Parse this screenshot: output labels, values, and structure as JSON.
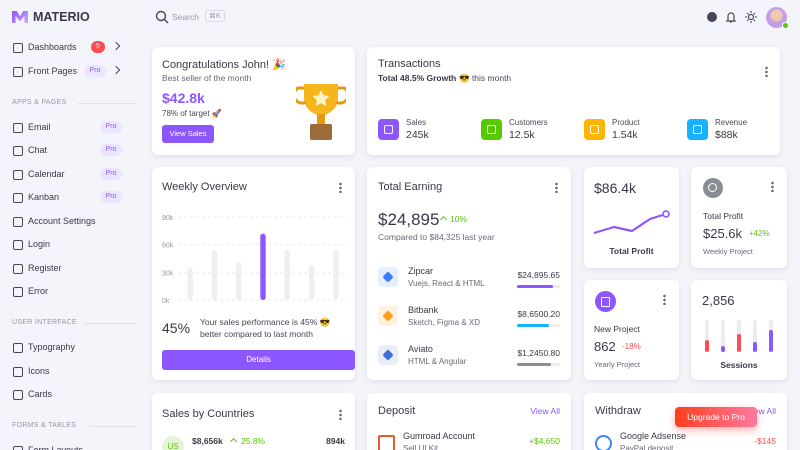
{
  "brand": "MATERIO",
  "search": {
    "placeholder": "Search",
    "shortcut": "⌘K"
  },
  "sidebar": {
    "top": [
      {
        "label": "Dashboards",
        "badge": "5"
      },
      {
        "label": "Front Pages",
        "badge": "Pro"
      }
    ],
    "sections": [
      {
        "title": "APPS & PAGES",
        "items": [
          {
            "label": "Email",
            "badge": "Pro"
          },
          {
            "label": "Chat",
            "badge": "Pro"
          },
          {
            "label": "Calendar",
            "badge": "Pro"
          },
          {
            "label": "Kanban",
            "badge": "Pro"
          },
          {
            "label": "Account Settings"
          },
          {
            "label": "Login"
          },
          {
            "label": "Register"
          },
          {
            "label": "Error"
          }
        ]
      },
      {
        "title": "USER INTERFACE",
        "items": [
          {
            "label": "Typography"
          },
          {
            "label": "Icons"
          },
          {
            "label": "Cards"
          }
        ]
      },
      {
        "title": "FORMS & TABLES",
        "items": [
          {
            "label": "Form Layouts"
          }
        ]
      }
    ]
  },
  "congrats": {
    "title": "Congratulations John! 🎉",
    "subtitle": "Best seller of the month",
    "amount": "$42.8k",
    "target": "78% of target 🚀",
    "button": "View Sales"
  },
  "transactions": {
    "title": "Transactions",
    "growth": "Total 48.5% Growth",
    "suffix": "😎 this month",
    "stats": [
      {
        "label": "Sales",
        "value": "245k"
      },
      {
        "label": "Customers",
        "value": "12.5k"
      },
      {
        "label": "Product",
        "value": "1.54k"
      },
      {
        "label": "Revenue",
        "value": "$88k"
      }
    ]
  },
  "weekly_overview": {
    "title": "Weekly Overview",
    "chart": {
      "type": "bar",
      "values": [
        35,
        54,
        41,
        72,
        54,
        38,
        54
      ],
      "ylim": [
        0,
        90
      ],
      "yticks": [
        {
          "value": 0,
          "label": "0k"
        },
        {
          "value": 30,
          "label": "30k"
        },
        {
          "value": 60,
          "label": "60k"
        },
        {
          "value": 90,
          "label": "90k"
        }
      ],
      "color": "#efeef3",
      "highlight_color": "#8c57ff",
      "grid": true
    },
    "percent": "45%",
    "text": "Your sales performance is 45% 😎 better compared to last month",
    "button": "Details"
  },
  "total_earning": {
    "title": "Total Earning",
    "amount": "$24,895",
    "change": "10%",
    "compare": "Compared to $84,325 last year",
    "items": [
      {
        "name": "Zipcar",
        "desc": "Vuejs, React & HTML",
        "amount": "$24,895.65"
      },
      {
        "name": "Bitbank",
        "desc": "Sketch, Figma & XD",
        "amount": "$8,6500.20"
      },
      {
        "name": "Aviato",
        "desc": "HTML & Angular",
        "amount": "$1,2450.80"
      }
    ]
  },
  "profit_chart": {
    "amount": "$86.4k",
    "label": "Total Profit"
  },
  "total_profit": {
    "title": "Total Profit",
    "amount": "$25.6k",
    "change": "+42%",
    "subtitle": "Weekly Project"
  },
  "new_project": {
    "title": "New Project",
    "amount": "862",
    "change": "-18%",
    "subtitle": "Yearly Project"
  },
  "sessions": {
    "amount": "2,856",
    "label": "Sessions"
  },
  "sales_by_countries": {
    "title": "Sales by Countries",
    "rows": [
      {
        "code": "US",
        "amount": "$8,656k",
        "change": "25.8%",
        "sales": "894k"
      }
    ]
  },
  "deposit": {
    "title": "Deposit",
    "link": "View All",
    "rows": [
      {
        "name": "Gumroad Account",
        "desc": "Sell UI Kit",
        "amount": "+$4,650"
      }
    ]
  },
  "withdraw": {
    "title": "Withdraw",
    "link": "View All",
    "rows": [
      {
        "name": "Google Adsense",
        "desc": "PayPal deposit",
        "amount": "-$145"
      }
    ]
  },
  "upgrade": "Upgrade to Pro"
}
